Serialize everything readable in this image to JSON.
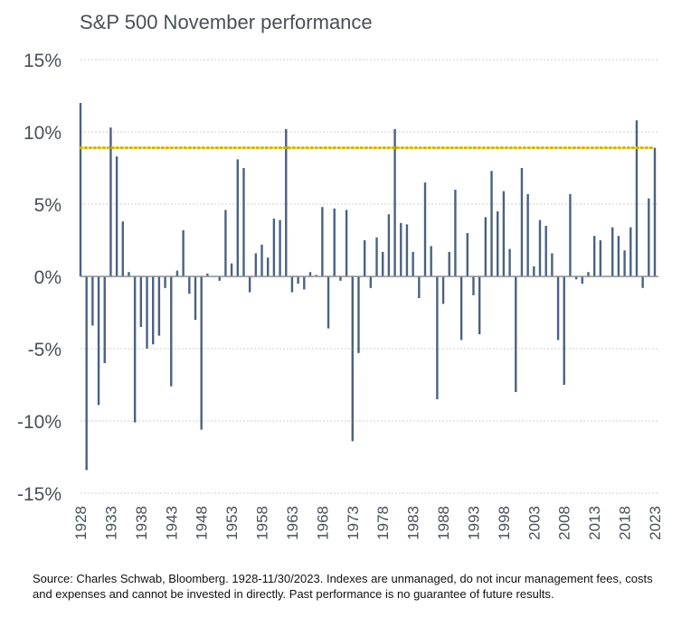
{
  "chart_data": {
    "type": "bar",
    "title": "S&P 500 November performance",
    "xlabel": "",
    "ylabel": "",
    "ylim": [
      -15,
      15
    ],
    "yticks": [
      "15%",
      "10%",
      "5%",
      "0%",
      "-5%",
      "-10%",
      "-15%"
    ],
    "ytick_values": [
      15,
      10,
      5,
      0,
      -5,
      -10,
      -15
    ],
    "xtick_labels": [
      "1928",
      "1933",
      "1938",
      "1943",
      "1948",
      "1953",
      "1958",
      "1963",
      "1968",
      "1973",
      "1978",
      "1983",
      "1988",
      "1993",
      "1998",
      "2003",
      "2008",
      "2013",
      "2018",
      "2023"
    ],
    "grid": true,
    "reference_line": {
      "value": 8.9,
      "color": "#d6b400",
      "style": "dotted"
    },
    "bar_color": "#4a6282",
    "x": [
      1928,
      1929,
      1930,
      1931,
      1932,
      1933,
      1934,
      1935,
      1936,
      1937,
      1938,
      1939,
      1940,
      1941,
      1942,
      1943,
      1944,
      1945,
      1946,
      1947,
      1948,
      1949,
      1950,
      1951,
      1952,
      1953,
      1954,
      1955,
      1956,
      1957,
      1958,
      1959,
      1960,
      1961,
      1962,
      1963,
      1964,
      1965,
      1966,
      1967,
      1968,
      1969,
      1970,
      1971,
      1972,
      1973,
      1974,
      1975,
      1976,
      1977,
      1978,
      1979,
      1980,
      1981,
      1982,
      1983,
      1984,
      1985,
      1986,
      1987,
      1988,
      1989,
      1990,
      1991,
      1992,
      1993,
      1994,
      1995,
      1996,
      1997,
      1998,
      1999,
      2000,
      2001,
      2002,
      2003,
      2004,
      2005,
      2006,
      2007,
      2008,
      2009,
      2010,
      2011,
      2012,
      2013,
      2014,
      2015,
      2016,
      2017,
      2018,
      2019,
      2020,
      2021,
      2022,
      2023
    ],
    "values": [
      12.0,
      -13.4,
      -3.4,
      -8.9,
      -6.0,
      10.3,
      8.3,
      3.8,
      0.3,
      -10.1,
      -3.5,
      -5.0,
      -4.7,
      -4.1,
      -0.8,
      -7.6,
      0.4,
      3.2,
      -1.2,
      -3.0,
      -10.6,
      0.2,
      0.0,
      -0.3,
      4.6,
      0.9,
      8.1,
      7.5,
      -1.1,
      1.6,
      2.2,
      1.3,
      4.0,
      3.9,
      10.2,
      -1.1,
      -0.5,
      -0.9,
      0.3,
      0.1,
      4.8,
      -3.6,
      4.7,
      -0.3,
      4.6,
      -11.4,
      -5.3,
      2.5,
      -0.8,
      2.7,
      1.7,
      4.3,
      10.2,
      3.7,
      3.6,
      1.7,
      -1.5,
      6.5,
      2.1,
      -8.5,
      -1.9,
      1.7,
      6.0,
      -4.4,
      3.0,
      -1.3,
      -4.0,
      4.1,
      7.3,
      4.5,
      5.9,
      1.9,
      -8.0,
      7.5,
      5.7,
      0.7,
      3.9,
      3.5,
      1.6,
      -4.4,
      -7.5,
      5.7,
      -0.2,
      -0.5,
      0.3,
      2.8,
      2.5,
      0.0,
      3.4,
      2.8,
      1.8,
      3.4,
      10.8,
      -0.8,
      5.4,
      8.9
    ]
  },
  "footnote": {
    "line1": "Source: Charles Schwab, Bloomberg. 1928-11/30/2023. Indexes are unmanaged, do not incur management fees, costs",
    "line2": "and expenses and cannot be invested in directly. Past performance is no guarantee of future results."
  }
}
